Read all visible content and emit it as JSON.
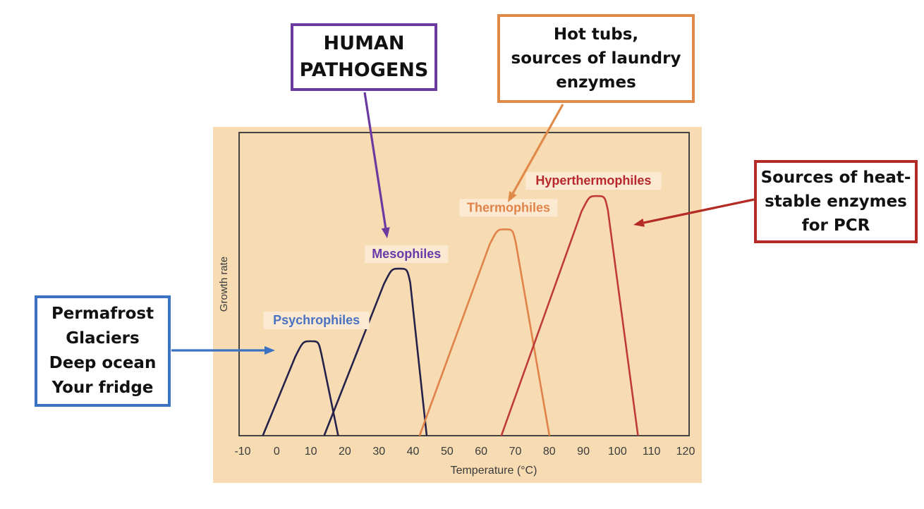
{
  "chart_data": {
    "type": "line",
    "title": "",
    "xlabel": "Temperature (°C)",
    "ylabel": "Growth rate",
    "xlim": [
      -10,
      120
    ],
    "x_ticks": [
      -10,
      0,
      10,
      20,
      30,
      40,
      50,
      60,
      70,
      80,
      90,
      100,
      110,
      120
    ],
    "y_ticks_shown": false,
    "grid": false,
    "legend": "none",
    "colors": {
      "background": "#f7dcb3",
      "frame": "#333333",
      "axis_text": "#3a3a3a"
    },
    "series": [
      {
        "name": "Psychrophiles",
        "color": "#24224a",
        "label_color": "#4a72c0",
        "min_temp": -4,
        "optimum_temp": 10,
        "max_temp": 18,
        "peak_relative_growth": 0.31
      },
      {
        "name": "Mesophiles",
        "color": "#24224a",
        "label_color": "#6a3aa8",
        "min_temp": 14,
        "optimum_temp": 36,
        "max_temp": 44,
        "peak_relative_growth": 0.55
      },
      {
        "name": "Thermophiles",
        "color": "#e0824a",
        "label_color": "#e0844a",
        "min_temp": 42,
        "optimum_temp": 67,
        "max_temp": 80,
        "peak_relative_growth": 0.68
      },
      {
        "name": "Hyperthermophiles",
        "color": "#c13a3a",
        "label_color": "#b8282c",
        "min_temp": 66,
        "optimum_temp": 94,
        "max_temp": 106,
        "peak_relative_growth": 0.79
      }
    ]
  },
  "callouts": {
    "human": {
      "lines": [
        "HUMAN",
        "PATHOGENS"
      ],
      "color": "#6b3aa0",
      "points_to": "Mesophiles"
    },
    "hot": {
      "lines": [
        "Hot tubs,",
        "sources of laundry",
        "enzymes"
      ],
      "color": "#e08a4a",
      "points_to": "Thermophiles"
    },
    "heat": {
      "lines": [
        "Sources of heat-",
        "stable enzymes",
        "for PCR"
      ],
      "color": "#b42a24",
      "points_to": "Hyperthermophiles"
    },
    "cold": {
      "lines": [
        "Permafrost",
        "Glaciers",
        "Deep ocean",
        "Your fridge"
      ],
      "color": "#3a72c4",
      "points_to": "Psychrophiles"
    }
  }
}
